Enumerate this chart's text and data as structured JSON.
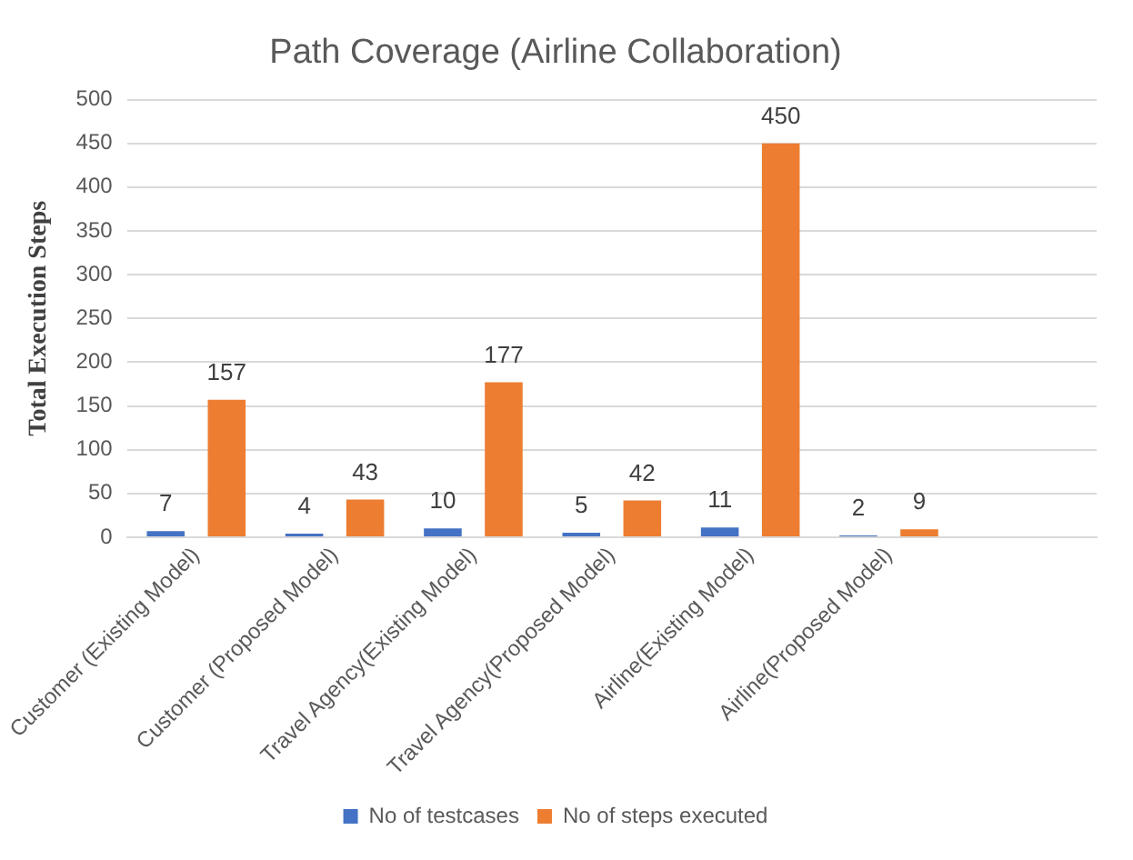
{
  "chart_data": {
    "type": "bar",
    "title": "Path Coverage (Airline Collaboration)",
    "ylabel": "Total Execution Steps",
    "categories": [
      "Customer (Existing Model)",
      "Customer (Proposed Model)",
      "Travel Agency(Existing Model)",
      "Travel Agency(Proposed Model)",
      "Airline(Existing Model)",
      "Airline(Proposed Model)",
      null
    ],
    "series": [
      {
        "name": "No of testcases",
        "color": "#4472c4",
        "values": [
          7,
          4,
          10,
          5,
          11,
          2,
          null
        ]
      },
      {
        "name": "No of steps executed",
        "color": "#ed7d31",
        "values": [
          157,
          43,
          177,
          42,
          450,
          9,
          null
        ]
      }
    ],
    "ylim": [
      0,
      500
    ],
    "yticks": [
      0,
      50,
      100,
      150,
      200,
      250,
      300,
      350,
      400,
      450,
      500
    ],
    "grid": "y",
    "legend": "bottom",
    "data_labels": true
  }
}
